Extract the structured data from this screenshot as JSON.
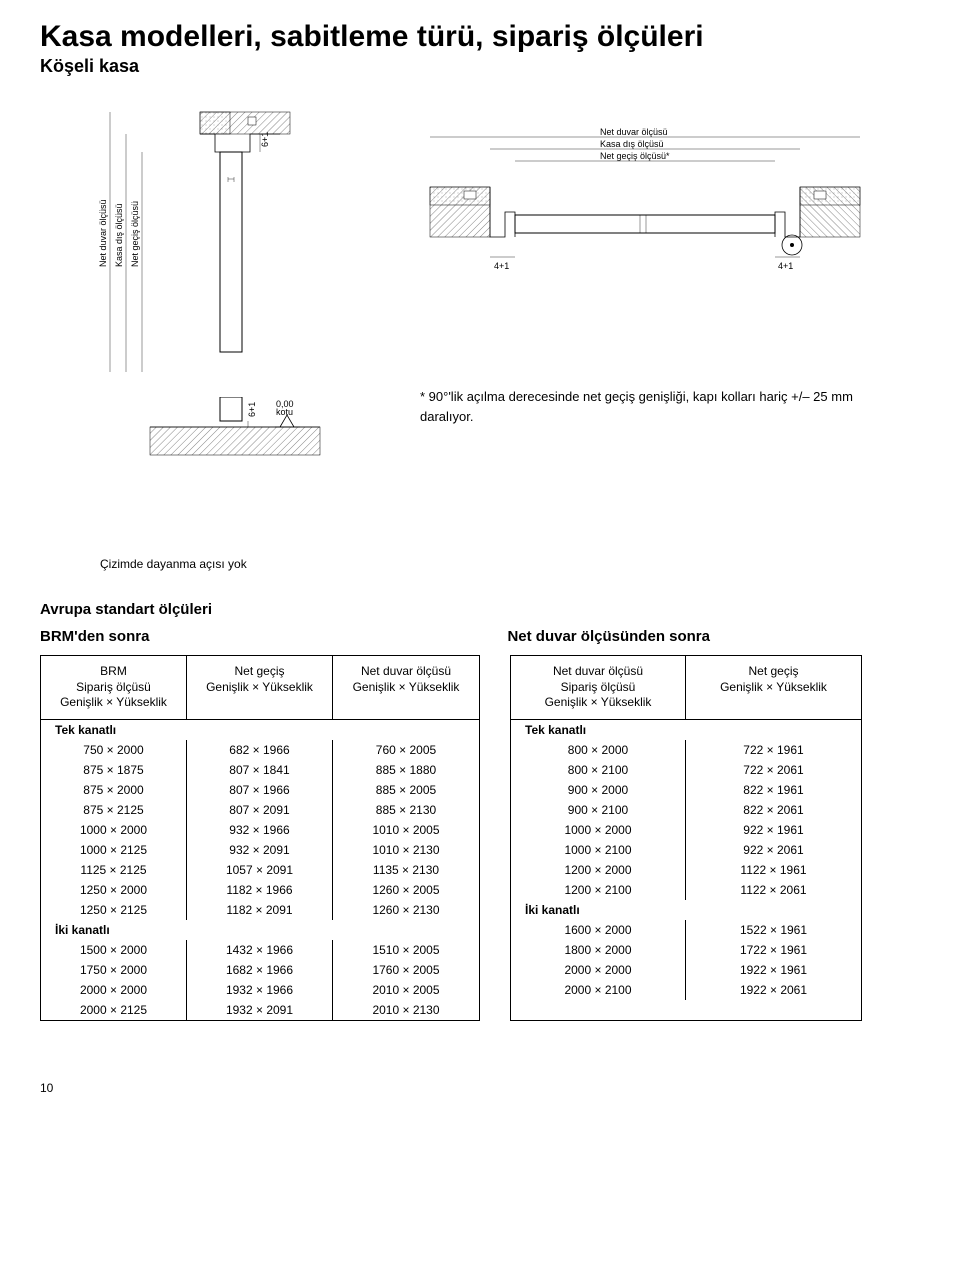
{
  "page": {
    "title": "Kasa modelleri, sabitleme türü, sipariş ölçüleri",
    "subtitle": "Köşeli kasa",
    "page_number": "10"
  },
  "diagram": {
    "left_labels": [
      "Net duvar ölçüsü",
      "Kasa dış ölçüsü",
      "Net geçiş ölçüsü"
    ],
    "top_labels": [
      "Net duvar ölçüsü",
      "Kasa dış ölçüsü",
      "Net geçiş ölçüsü*"
    ],
    "clearance_top": "6+1",
    "clearance_side": "4+1",
    "clearance_bottom": "6+1",
    "zero_level": "0,00 kotu",
    "note": "* 90°'lik açılma derecesinde net geçiş genişliği, kapı kolları hariç +/– 25 mm daralıyor.",
    "caption": "Çizimde dayanma açısı yok"
  },
  "tables": {
    "section_title": "Avrupa standart ölçüleri",
    "brm_title": "BRM'den sonra",
    "net_title": "Net duvar ölçüsünden sonra",
    "brm": {
      "headers": [
        "BRM\nSipariş ölçüsü\nGenişlik × Yükseklik",
        "Net geçiş\nGenişlik × Yükseklik",
        "Net duvar ölçüsü\nGenişlik × Yükseklik"
      ],
      "single_label": "Tek kanatlı",
      "double_label": "İki kanatlı",
      "single": [
        [
          "750 × 2000",
          "682 × 1966",
          "760 × 2005"
        ],
        [
          "875 × 1875",
          "807 × 1841",
          "885 × 1880"
        ],
        [
          "875 × 2000",
          "807 × 1966",
          "885 × 2005"
        ],
        [
          "875 × 2125",
          "807 × 2091",
          "885 × 2130"
        ],
        [
          "1000 × 2000",
          "932 × 1966",
          "1010 × 2005"
        ],
        [
          "1000 × 2125",
          "932 × 2091",
          "1010 × 2130"
        ],
        [
          "1125 × 2125",
          "1057 × 2091",
          "1135 × 2130"
        ],
        [
          "1250 × 2000",
          "1182 × 1966",
          "1260 × 2005"
        ],
        [
          "1250 × 2125",
          "1182 × 2091",
          "1260 × 2130"
        ]
      ],
      "double": [
        [
          "1500 × 2000",
          "1432 × 1966",
          "1510 × 2005"
        ],
        [
          "1750 × 2000",
          "1682 × 1966",
          "1760 × 2005"
        ],
        [
          "2000 × 2000",
          "1932 × 1966",
          "2010 × 2005"
        ],
        [
          "2000 × 2125",
          "1932 × 2091",
          "2010 × 2130"
        ]
      ]
    },
    "net": {
      "headers": [
        "Net duvar ölçüsü\nSipariş ölçüsü\nGenişlik × Yükseklik",
        "Net geçiş\nGenişlik × Yükseklik"
      ],
      "single_label": "Tek kanatlı",
      "double_label": "İki kanatlı",
      "single": [
        [
          "800 × 2000",
          "722 × 1961"
        ],
        [
          "800 × 2100",
          "722 × 2061"
        ],
        [
          "900 × 2000",
          "822 × 1961"
        ],
        [
          "900 × 2100",
          "822 × 2061"
        ],
        [
          "1000 × 2000",
          "922 × 1961"
        ],
        [
          "1000 × 2100",
          "922 × 2061"
        ],
        [
          "1200 × 2000",
          "1122 × 1961"
        ],
        [
          "1200 × 2100",
          "1122 × 2061"
        ]
      ],
      "double": [
        [
          "1600 × 2000",
          "1522 × 1961"
        ],
        [
          "1800 × 2000",
          "1722 × 1961"
        ],
        [
          "2000 × 2000",
          "1922 × 1961"
        ],
        [
          "2000 × 2100",
          "1922 × 2061"
        ]
      ]
    }
  }
}
